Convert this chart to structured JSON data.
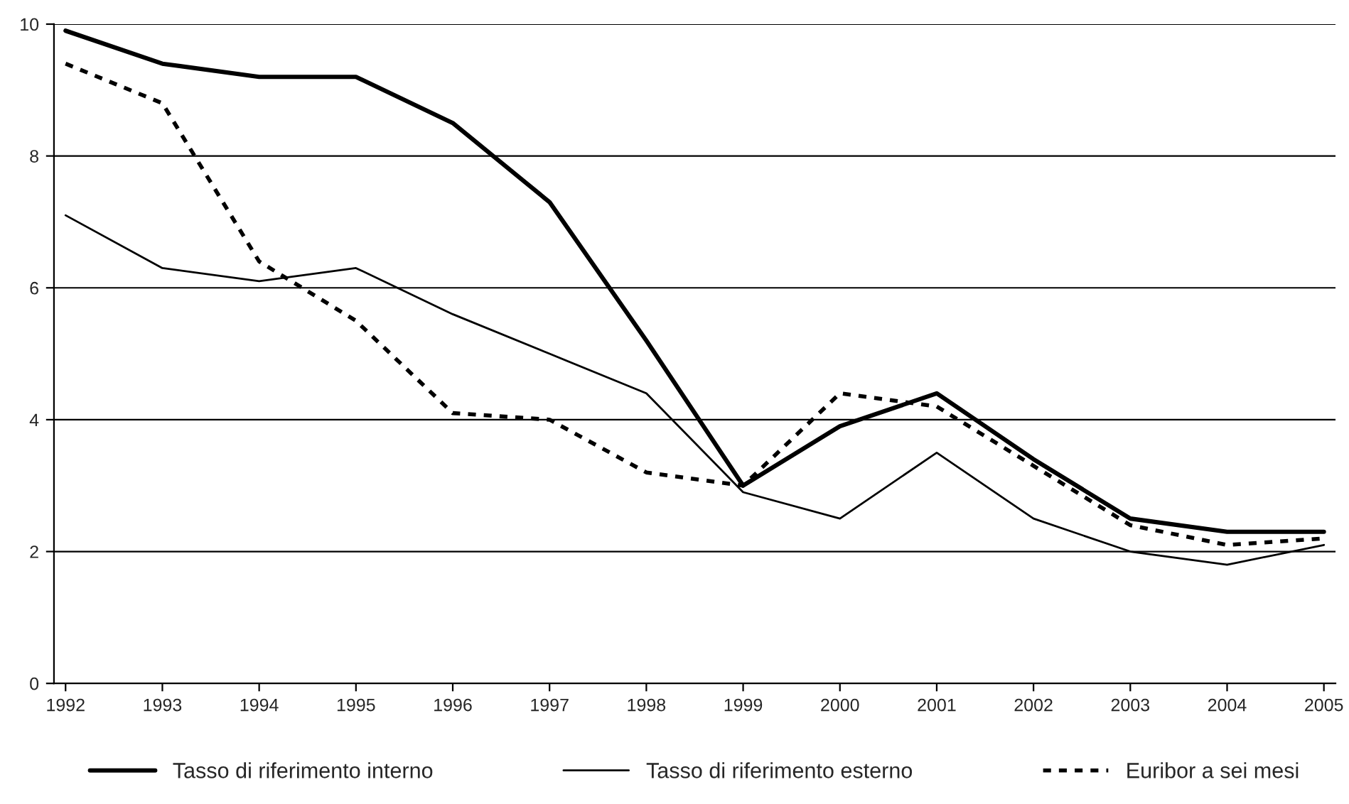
{
  "chart_data": {
    "type": "line",
    "categories": [
      "1992",
      "1993",
      "1994",
      "1995",
      "1996",
      "1997",
      "1998",
      "1999",
      "2000",
      "2001",
      "2002",
      "2003",
      "2004",
      "2005"
    ],
    "series": [
      {
        "name": "Tasso di riferimento interno",
        "color": "#000000",
        "line_style": "solid",
        "values": [
          9.9,
          9.4,
          9.2,
          9.2,
          8.5,
          7.3,
          5.2,
          3.0,
          3.9,
          4.4,
          3.4,
          2.5,
          2.3,
          2.3
        ]
      },
      {
        "name": "Tasso di riferimento esterno",
        "color": "#000000",
        "line_style": "solid",
        "values": [
          7.1,
          6.3,
          6.1,
          6.3,
          5.6,
          5.0,
          4.4,
          2.9,
          2.5,
          3.5,
          2.5,
          2.0,
          1.8,
          2.1
        ]
      },
      {
        "name": "Euribor a sei mesi",
        "color": "#000000",
        "line_style": "dotted",
        "values": [
          9.4,
          8.8,
          6.4,
          5.5,
          4.1,
          4.0,
          3.2,
          3.0,
          4.4,
          4.2,
          3.3,
          2.4,
          2.1,
          2.2
        ]
      }
    ],
    "ylim": [
      0,
      10
    ],
    "yticks": [
      0,
      2,
      4,
      6,
      8,
      10
    ],
    "grid": "y",
    "legend": "bottom",
    "marker": "none"
  }
}
